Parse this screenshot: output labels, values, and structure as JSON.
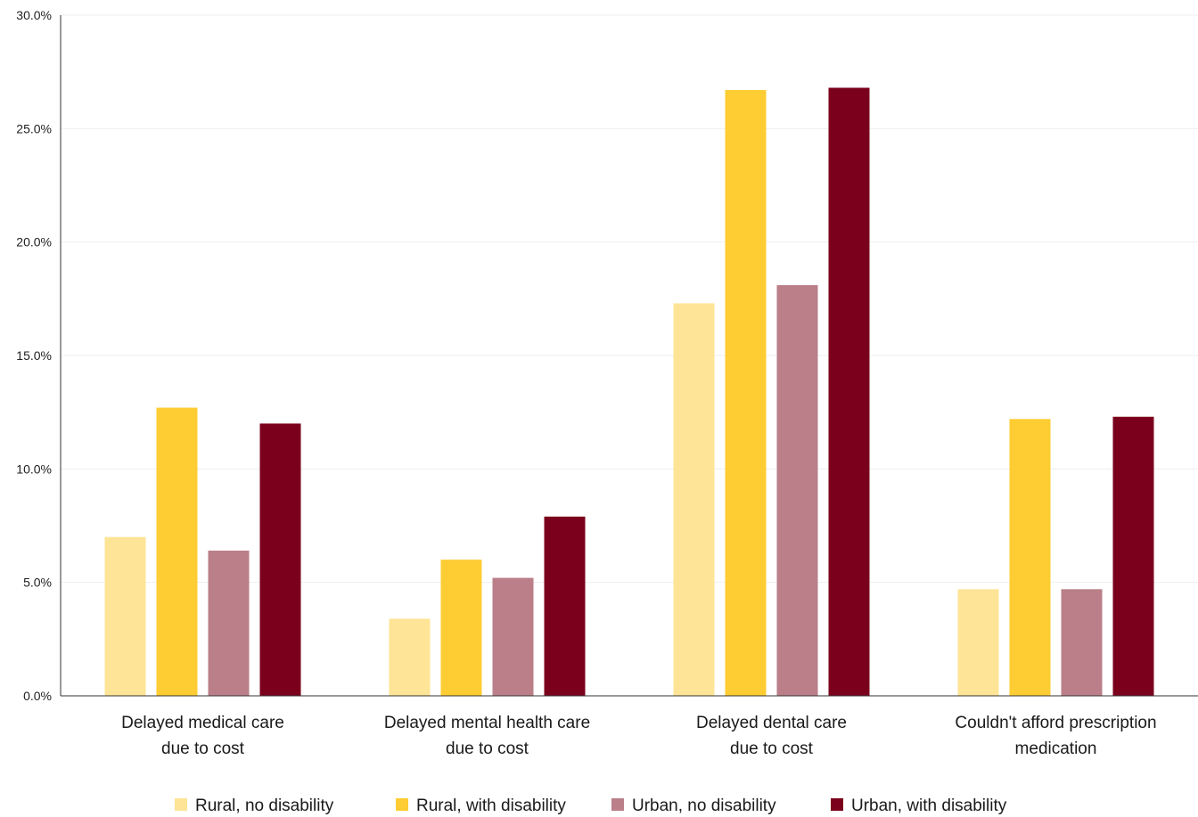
{
  "chart_data": {
    "type": "bar",
    "title": "",
    "xlabel": "",
    "ylabel": "",
    "ylim": [
      0,
      30
    ],
    "y_ticks": [
      "0.0%",
      "5.0%",
      "10.0%",
      "15.0%",
      "20.0%",
      "25.0%",
      "30.0%"
    ],
    "y_tick_values": [
      0,
      5,
      10,
      15,
      20,
      25,
      30
    ],
    "grid": true,
    "legend_position": "bottom",
    "categories": [
      [
        "Delayed medical care",
        "due to cost"
      ],
      [
        "Delayed mental health care",
        "due to cost"
      ],
      [
        "Delayed dental care",
        "due to cost"
      ],
      [
        "Couldn't afford prescription",
        "medication"
      ]
    ],
    "series": [
      {
        "name": "Rural, no disability",
        "color": "#fee496",
        "values": [
          7.0,
          3.4,
          17.3,
          4.7
        ]
      },
      {
        "name": "Rural, with disability",
        "color": "#fecc33",
        "values": [
          12.7,
          6.0,
          26.7,
          12.2
        ]
      },
      {
        "name": "Urban, no disability",
        "color": "#ba7f89",
        "values": [
          6.4,
          5.2,
          18.1,
          4.7
        ]
      },
      {
        "name": "Urban, with disability",
        "color": "#7b001c",
        "values": [
          12.0,
          7.9,
          26.8,
          12.3
        ]
      }
    ]
  }
}
